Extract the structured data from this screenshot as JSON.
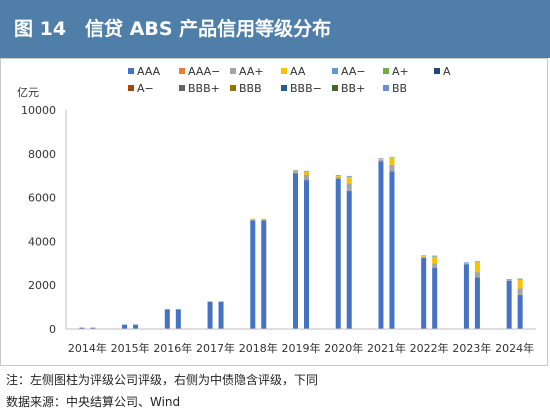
{
  "header": {
    "title": "图 14　信贷 ABS 产品信用等级分布"
  },
  "footer": {
    "note": "注：左侧图柱为评级公司评级，右侧为中债隐含评级，下同",
    "source": "数据来源：中央结算公司、Wind"
  },
  "chart_data": {
    "type": "bar",
    "stacked": true,
    "ylabel": "亿元",
    "ylim": [
      0,
      10000
    ],
    "yticks": [
      0,
      2000,
      4000,
      6000,
      8000,
      10000
    ],
    "grid": false,
    "legend_position": "top",
    "categories": [
      "2014年",
      "2015年",
      "2016年",
      "2017年",
      "2018年",
      "2019年",
      "2020年",
      "2021年",
      "2022年",
      "2023年",
      "2024年"
    ],
    "bar_groups": [
      "评级公司评级",
      "中债隐含评级"
    ],
    "legend": [
      {
        "name": "AAA",
        "color": "#4472c4"
      },
      {
        "name": "AAA−",
        "color": "#ed7d31"
      },
      {
        "name": "AA+",
        "color": "#a5a5a5"
      },
      {
        "name": "AA",
        "color": "#ffc000"
      },
      {
        "name": "AA−",
        "color": "#5b9bd5"
      },
      {
        "name": "A+",
        "color": "#70ad47"
      },
      {
        "name": "A",
        "color": "#264478"
      },
      {
        "name": "A−",
        "color": "#9e480e"
      },
      {
        "name": "BBB+",
        "color": "#636363"
      },
      {
        "name": "BBB",
        "color": "#997300"
      },
      {
        "name": "BBB−",
        "color": "#255e91"
      },
      {
        "name": "BB+",
        "color": "#43682b"
      },
      {
        "name": "BB",
        "color": "#698ed0"
      }
    ],
    "series": [
      {
        "name": "AAA",
        "color": "#4472c4",
        "left": [
          60,
          200,
          900,
          1250,
          4950,
          7100,
          6850,
          7650,
          3250,
          2950,
          2200
        ],
        "right": [
          60,
          200,
          900,
          1250,
          4950,
          6800,
          6300,
          7200,
          2800,
          2350,
          1550
        ]
      },
      {
        "name": "AA+",
        "color": "#a5a5a5",
        "left": [
          0,
          0,
          0,
          0,
          60,
          100,
          100,
          80,
          50,
          50,
          40
        ],
        "right": [
          0,
          0,
          0,
          0,
          60,
          250,
          350,
          300,
          200,
          250,
          300
        ]
      },
      {
        "name": "AA",
        "color": "#ffc000",
        "left": [
          0,
          0,
          0,
          0,
          20,
          40,
          60,
          50,
          40,
          30,
          30
        ],
        "right": [
          0,
          0,
          0,
          0,
          20,
          150,
          300,
          300,
          300,
          450,
          400
        ]
      },
      {
        "name": "AA−",
        "color": "#5b9bd5",
        "left": [
          0,
          0,
          0,
          0,
          0,
          10,
          20,
          20,
          20,
          10,
          10
        ],
        "right": [
          0,
          0,
          0,
          0,
          0,
          20,
          40,
          40,
          50,
          40,
          50
        ]
      }
    ]
  }
}
